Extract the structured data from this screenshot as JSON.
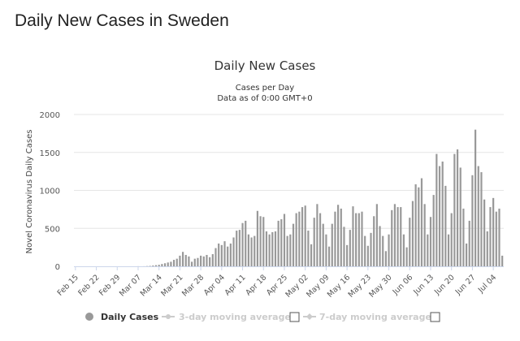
{
  "page": {
    "title": "Daily New Cases in Sweden"
  },
  "chart_data": {
    "type": "bar",
    "title": "Daily New Cases",
    "subtitle_line1": "Cases per Day",
    "subtitle_line2": "Data as of 0:00 GMT+0",
    "xlabel": "",
    "ylabel": "Novel Coronavirus Daily Cases",
    "ylim": [
      0,
      2000
    ],
    "yticks": [
      0,
      500,
      1000,
      1500,
      2000
    ],
    "ytick_labels": [
      "0",
      "500",
      "1000",
      "1500",
      "2000"
    ],
    "grid": true,
    "start_date": "2020-02-15",
    "x_tick_labels": [
      "Feb 15",
      "Feb 22",
      "Feb 29",
      "Mar 07",
      "Mar 14",
      "Mar 21",
      "Mar 28",
      "Apr 04",
      "Apr 11",
      "Apr 18",
      "Apr 25",
      "May 02",
      "May 09",
      "May 16",
      "May 23",
      "May 30",
      "Jun 06",
      "Jun 13",
      "Jun 20",
      "Jun 27",
      "Jul 04"
    ],
    "x_tick_labels_every_n_days": 7,
    "series": [
      {
        "name": "Daily Cases",
        "color": "#999999",
        "values": [
          0,
          0,
          0,
          0,
          0,
          0,
          0,
          0,
          0,
          0,
          0,
          0,
          0,
          0,
          0,
          0,
          0,
          0,
          0,
          0,
          0,
          1,
          0,
          1,
          3,
          5,
          10,
          15,
          20,
          30,
          40,
          50,
          60,
          85,
          100,
          140,
          190,
          150,
          130,
          60,
          100,
          110,
          140,
          130,
          150,
          120,
          160,
          240,
          300,
          280,
          330,
          260,
          300,
          380,
          470,
          480,
          570,
          600,
          420,
          380,
          400,
          730,
          660,
          650,
          460,
          420,
          450,
          460,
          600,
          620,
          690,
          400,
          420,
          560,
          700,
          720,
          780,
          800,
          470,
          290,
          640,
          820,
          700,
          560,
          420,
          260,
          560,
          720,
          810,
          760,
          520,
          280,
          480,
          790,
          700,
          700,
          720,
          400,
          270,
          440,
          660,
          820,
          530,
          400,
          200,
          420,
          740,
          820,
          780,
          780,
          420,
          250,
          640,
          860,
          1080,
          1040,
          1160,
          820,
          420,
          650,
          940,
          1480,
          1320,
          1380,
          1060,
          420,
          700,
          1480,
          1540,
          1300,
          760,
          300,
          600,
          1200,
          1800,
          1320,
          1240,
          880,
          460,
          780,
          900,
          720,
          760,
          140
        ]
      }
    ],
    "legend": {
      "placement": "bottom",
      "items": [
        {
          "label": "Daily Cases",
          "active": true
        },
        {
          "label": "3-day moving average",
          "active": false
        },
        {
          "label": "7-day moving average",
          "active": false
        }
      ]
    }
  }
}
